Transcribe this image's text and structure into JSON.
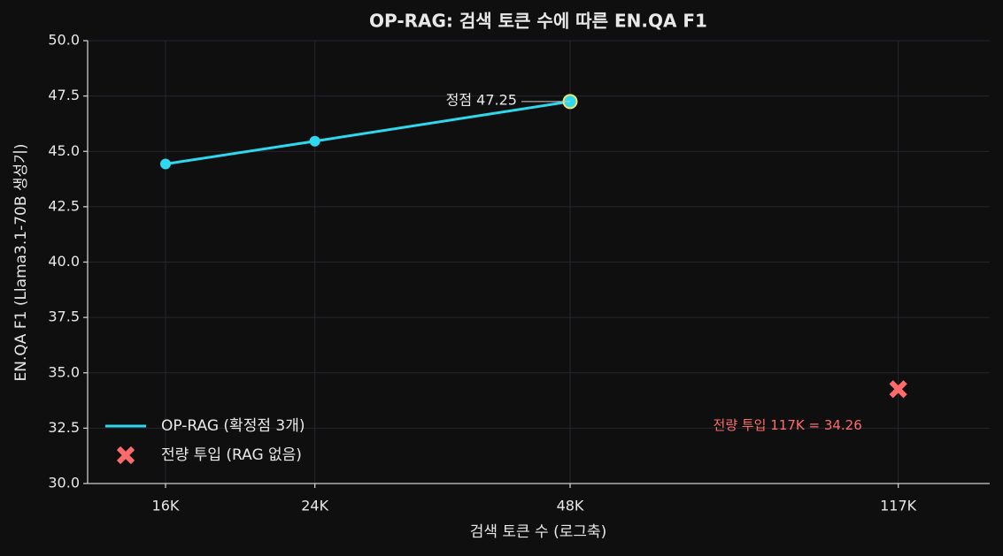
{
  "chart_data": {
    "type": "line",
    "title": "OP-RAG: 검색 토큰 수에 따른 EN.QA F1",
    "x_label": "검색 토큰 수 (로그축)",
    "y_label": "EN.QA F1 (Llama3.1-70B 생성기)",
    "x_scale": "log",
    "xlim": [
      12950,
      150000
    ],
    "xticks": [
      {
        "value": 16000,
        "label": "16K"
      },
      {
        "value": 24000,
        "label": "24K"
      },
      {
        "value": 48000,
        "label": "48K"
      },
      {
        "value": 117000,
        "label": "117K"
      }
    ],
    "ylim": [
      30,
      50
    ],
    "yticks": [
      {
        "value": 30,
        "label": "30.0"
      },
      32.5,
      {
        "value": 35,
        "label": "35.0"
      },
      37.5,
      {
        "value": 40,
        "label": "40.0"
      },
      42.5,
      {
        "value": 45,
        "label": "45.0"
      },
      47.5,
      {
        "value": 50,
        "label": "50.0"
      }
    ],
    "grid": true,
    "legend": "lower left",
    "series": [
      {
        "name": "OP-RAG (확정점 3개)",
        "color": "#2ed8ee",
        "x": [
          16000,
          24000,
          48000
        ],
        "values": [
          44.43,
          45.46,
          47.25
        ]
      },
      {
        "name": "전량 투입 (RAG 없음)",
        "color": "#ff6b6b",
        "type": "scatter",
        "x": [
          117000
        ],
        "values": [
          34.26
        ]
      }
    ],
    "annotations": [
      "정점 47.25",
      "전량 투입 117K = 34.26"
    ]
  }
}
